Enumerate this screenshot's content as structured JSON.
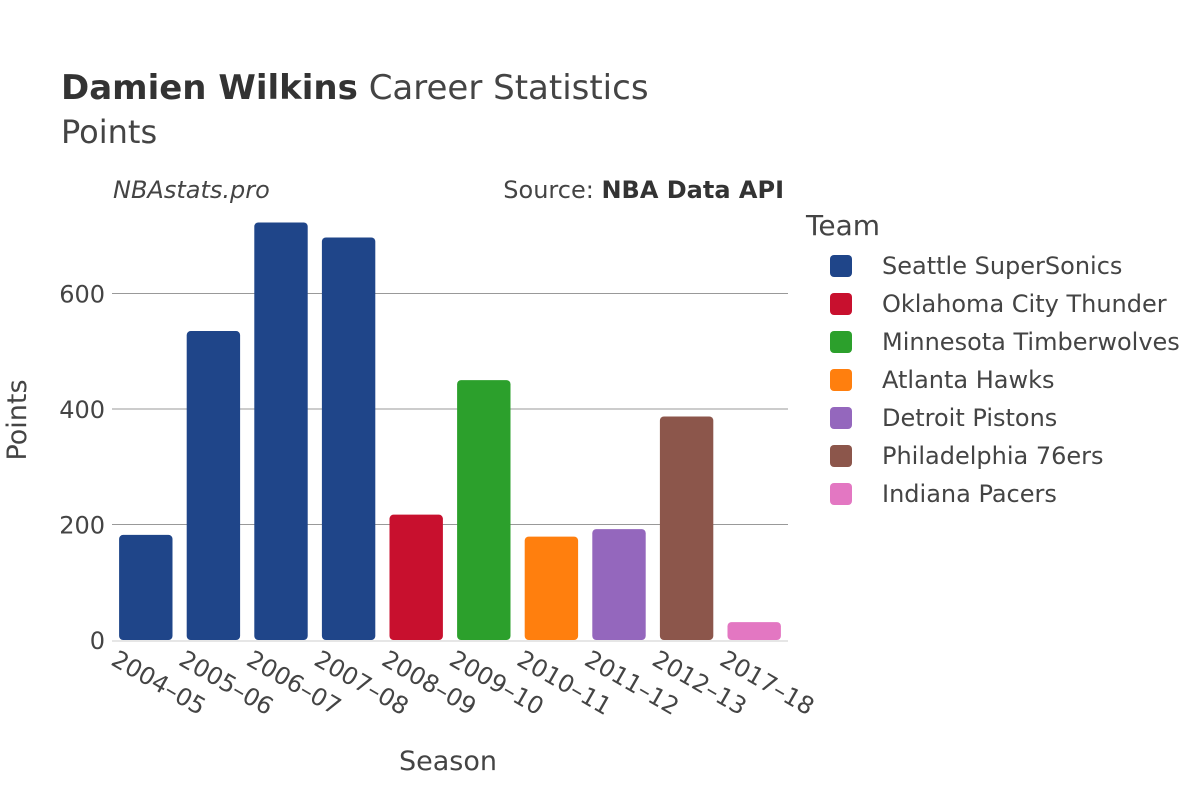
{
  "header": {
    "title_bold": "Damien Wilkins",
    "title_rest": "Career Statistics",
    "subtitle": "Points",
    "watermark": "NBAstats.pro",
    "source_prefix": "Source: ",
    "source_bold": "NBA Data API"
  },
  "legend": {
    "title": "Team",
    "items": [
      {
        "label": "Seattle SuperSonics",
        "color": "#1f4589"
      },
      {
        "label": "Oklahoma City Thunder",
        "color": "#c8102e"
      },
      {
        "label": "Minnesota Timberwolves",
        "color": "#2ca02c"
      },
      {
        "label": "Atlanta Hawks",
        "color": "#ff7f0e"
      },
      {
        "label": "Detroit Pistons",
        "color": "#9467bd"
      },
      {
        "label": "Philadelphia 76ers",
        "color": "#8c564b"
      },
      {
        "label": "Indiana Pacers",
        "color": "#e377c2"
      }
    ]
  },
  "chart_data": {
    "type": "bar",
    "xlabel": "Season",
    "ylabel": "Points",
    "ylim": [
      0,
      750
    ],
    "yticks": [
      0,
      200,
      400,
      600
    ],
    "grid": true,
    "legend_position": "right",
    "categories": [
      "2004–05",
      "2005–06",
      "2006–07",
      "2007–08",
      "2008–09",
      "2009–10",
      "2010–11",
      "2011–12",
      "2012–13",
      "2017–18"
    ],
    "values": [
      182,
      535,
      723,
      697,
      217,
      450,
      179,
      192,
      387,
      31
    ],
    "teams": [
      "Seattle SuperSonics",
      "Seattle SuperSonics",
      "Seattle SuperSonics",
      "Seattle SuperSonics",
      "Oklahoma City Thunder",
      "Minnesota Timberwolves",
      "Atlanta Hawks",
      "Detroit Pistons",
      "Philadelphia 76ers",
      "Indiana Pacers"
    ]
  }
}
